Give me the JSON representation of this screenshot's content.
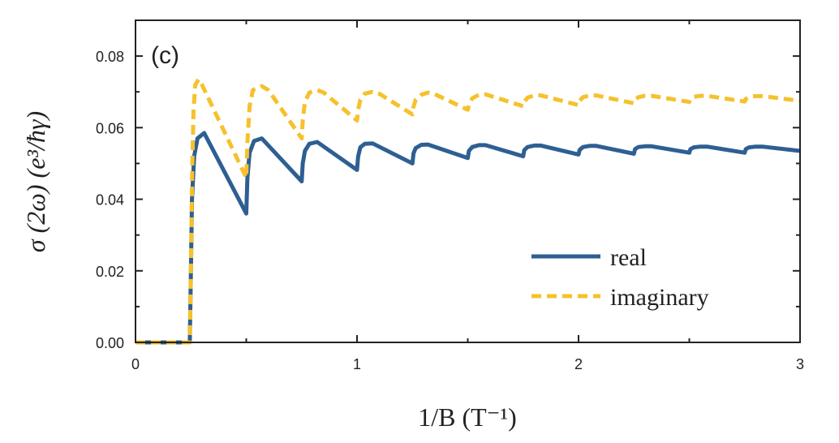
{
  "chart_data": {
    "type": "line",
    "panel_label": "(c)",
    "xlabel": "1/B (T⁻¹)",
    "ylabel": "σ (2ω) (e³/ħγ)",
    "xlim": [
      0,
      3
    ],
    "ylim": [
      0,
      0.09
    ],
    "xticks": [
      0,
      1,
      2,
      3
    ],
    "xtick_labels": [
      "0",
      "1",
      "2",
      "3"
    ],
    "yticks": [
      0,
      0.02,
      0.04,
      0.06,
      0.08
    ],
    "ytick_labels": [
      "0.00",
      "0.02",
      "0.04",
      "0.06",
      "0.08"
    ],
    "grid": false,
    "legend_position": "bottom-right",
    "series": [
      {
        "name": "real",
        "color": "#2e5f93",
        "style": "solid",
        "x": [
          0,
          0.245,
          0.25,
          0.255,
          0.265,
          0.28,
          0.31,
          0.5,
          0.505,
          0.515,
          0.535,
          0.57,
          0.75,
          0.755,
          0.765,
          0.785,
          0.82,
          1.0,
          1.005,
          1.015,
          1.035,
          1.07,
          1.25,
          1.255,
          1.265,
          1.29,
          1.32,
          1.5,
          1.505,
          1.52,
          1.55,
          1.58,
          1.75,
          1.755,
          1.77,
          1.8,
          1.83,
          2.0,
          2.005,
          2.02,
          2.05,
          2.08,
          2.25,
          2.255,
          2.27,
          2.3,
          2.33,
          2.5,
          2.505,
          2.52,
          2.55,
          2.58,
          2.75,
          2.755,
          2.77,
          2.8,
          2.83,
          3.0
        ],
        "y": [
          0,
          0,
          0.02,
          0.04,
          0.052,
          0.057,
          0.0585,
          0.036,
          0.046,
          0.053,
          0.0563,
          0.057,
          0.045,
          0.05,
          0.0535,
          0.0555,
          0.056,
          0.0482,
          0.052,
          0.0545,
          0.0555,
          0.0556,
          0.05,
          0.0528,
          0.0543,
          0.0552,
          0.0553,
          0.0515,
          0.0535,
          0.0546,
          0.0551,
          0.0551,
          0.052,
          0.0537,
          0.0546,
          0.055,
          0.055,
          0.0525,
          0.0538,
          0.0546,
          0.0549,
          0.0549,
          0.0527,
          0.054,
          0.0546,
          0.0548,
          0.0548,
          0.053,
          0.054,
          0.0545,
          0.0547,
          0.0547,
          0.053,
          0.054,
          0.0545,
          0.0547,
          0.0547,
          0.0535
        ]
      },
      {
        "name": "imaginary",
        "color": "#f6c12c",
        "style": "dashed",
        "x": [
          0,
          0.245,
          0.25,
          0.255,
          0.262,
          0.27,
          0.285,
          0.3,
          0.5,
          0.505,
          0.515,
          0.53,
          0.57,
          0.6,
          0.75,
          0.755,
          0.765,
          0.785,
          0.82,
          0.85,
          1.0,
          1.005,
          1.015,
          1.035,
          1.07,
          1.1,
          1.25,
          1.255,
          1.265,
          1.29,
          1.32,
          1.35,
          1.5,
          1.505,
          1.52,
          1.55,
          1.58,
          1.75,
          1.755,
          1.77,
          1.8,
          1.83,
          2.0,
          2.005,
          2.02,
          2.05,
          2.08,
          2.25,
          2.255,
          2.27,
          2.3,
          2.33,
          2.5,
          2.505,
          2.52,
          2.55,
          2.58,
          2.75,
          2.755,
          2.77,
          2.8,
          2.83,
          3.0
        ],
        "y": [
          0,
          0,
          0.02,
          0.045,
          0.065,
          0.072,
          0.0735,
          0.072,
          0.046,
          0.056,
          0.066,
          0.0705,
          0.0716,
          0.0705,
          0.057,
          0.062,
          0.0672,
          0.0698,
          0.0705,
          0.0698,
          0.062,
          0.065,
          0.0678,
          0.0695,
          0.07,
          0.0695,
          0.0637,
          0.0658,
          0.0678,
          0.0692,
          0.0698,
          0.0694,
          0.065,
          0.0665,
          0.0682,
          0.0692,
          0.0693,
          0.066,
          0.0672,
          0.0684,
          0.069,
          0.069,
          0.0663,
          0.0675,
          0.0685,
          0.069,
          0.069,
          0.0668,
          0.0677,
          0.0685,
          0.0689,
          0.0689,
          0.0672,
          0.068,
          0.0686,
          0.0689,
          0.0689,
          0.0673,
          0.068,
          0.0686,
          0.0688,
          0.0688,
          0.0675
        ]
      }
    ]
  }
}
